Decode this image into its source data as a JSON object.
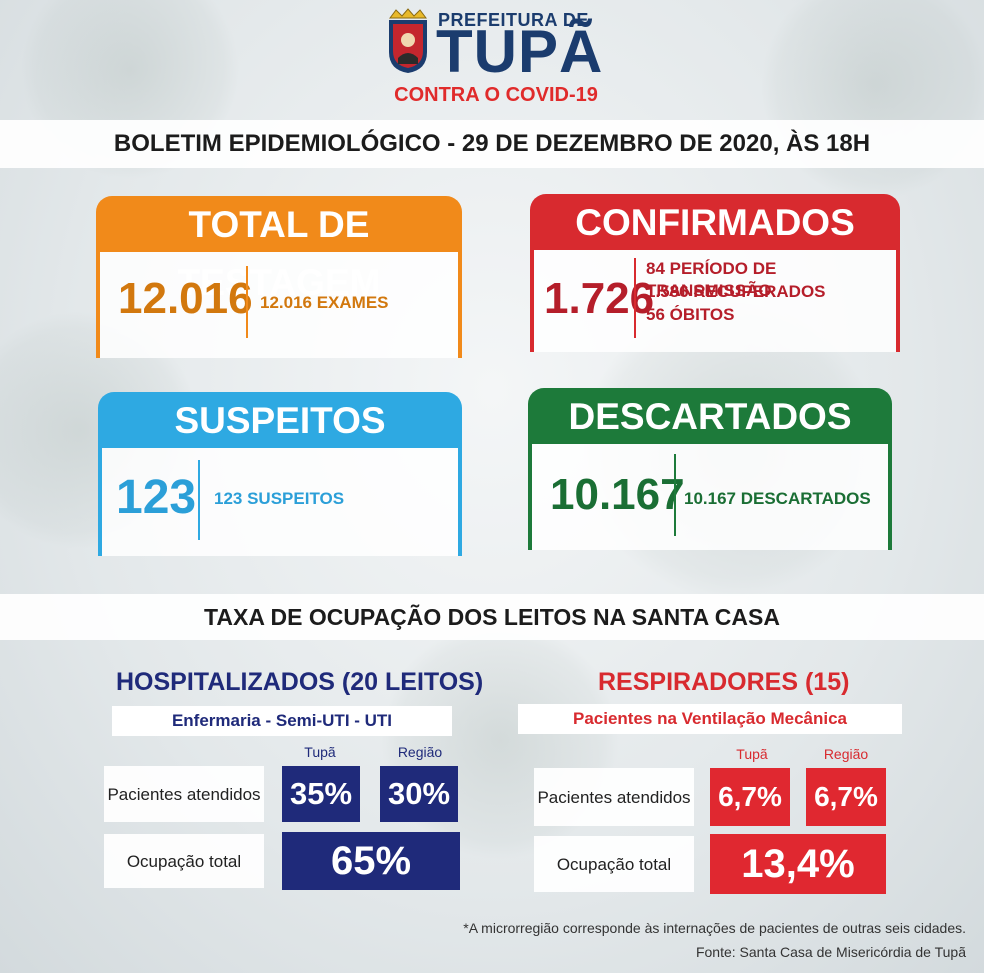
{
  "header": {
    "brand_small": "PREFEITURA DE",
    "brand_big": "TUPÃ",
    "brand_sub": "CONTRA O COVID-19"
  },
  "bulletin_title": "BOLETIM EPIDEMIOLÓGICO - 29 DE DEZEMBRO DE 2020, ÀS 18H",
  "cards": {
    "testagem": {
      "title": "TOTAL DE TESTAGEM",
      "value": "12.016",
      "details": [
        "12.016 EXAMES"
      ]
    },
    "confirmados": {
      "title": "CONFIRMADOS",
      "value": "1.726",
      "details": [
        "84 PERÍODO DE TRANSMISSÃO",
        "1.586 RECUPERADOS",
        "56 ÓBITOS"
      ]
    },
    "suspeitos": {
      "title": "SUSPEITOS",
      "value": "123",
      "details": [
        "123 SUSPEITOS"
      ]
    },
    "descartados": {
      "title": "DESCARTADOS",
      "value": "10.167",
      "details": [
        "10.167 DESCARTADOS"
      ]
    }
  },
  "taxa_title": "TAXA DE OCUPAÇÃO DOS LEITOS NA SANTA CASA",
  "hospitalizados": {
    "title": "HOSPITALIZADOS (20 LEITOS)",
    "subtitle": "Enfermaria - Semi-UTI - UTI",
    "col_tupa": "Tupã",
    "col_regiao": "Região",
    "row_pacientes": "Pacientes atendidos",
    "row_ocupacao": "Ocupação total",
    "tupa_value": "35%",
    "regiao_value": "30%",
    "total_value": "65%"
  },
  "respiradores": {
    "title": "RESPIRADORES (15)",
    "subtitle": "Pacientes na Ventilação Mecânica",
    "col_tupa": "Tupã",
    "col_regiao": "Região",
    "row_pacientes": "Pacientes atendidos",
    "row_ocupacao": "Ocupação total",
    "tupa_value": "6,7%",
    "regiao_value": "6,7%",
    "total_value": "13,4%"
  },
  "footnote": "*A microrregião corresponde às internações de pacientes de outras seis cidades.",
  "source": "Fonte: Santa Casa de Misericórdia de Tupã",
  "colors": {
    "orange": "#f18a1a",
    "red": "#d82a2f",
    "blue": "#2ea9e2",
    "green": "#1d7a3a",
    "navy": "#1f2a7a",
    "scarlet": "#e02830"
  }
}
